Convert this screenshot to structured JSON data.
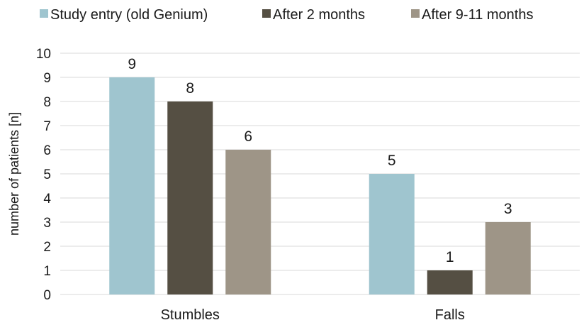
{
  "chart_data": {
    "type": "bar",
    "categories": [
      "Stumbles",
      "Falls"
    ],
    "series": [
      {
        "name": "Study entry (old Genium)",
        "values": [
          9,
          5
        ],
        "color": "#9fc5cf"
      },
      {
        "name": "After 2 months",
        "values": [
          8,
          1
        ],
        "color": "#554f43"
      },
      {
        "name": "After 9-11 months",
        "values": [
          6,
          3
        ],
        "color": "#9e9587"
      }
    ],
    "title": "",
    "xlabel": "",
    "ylabel": "number of patients [n]",
    "ylim": [
      0,
      10
    ],
    "yticks": [
      0,
      1,
      2,
      3,
      4,
      5,
      6,
      7,
      8,
      9,
      10
    ],
    "grid": true,
    "legend_position": "top",
    "data_labels": true
  }
}
